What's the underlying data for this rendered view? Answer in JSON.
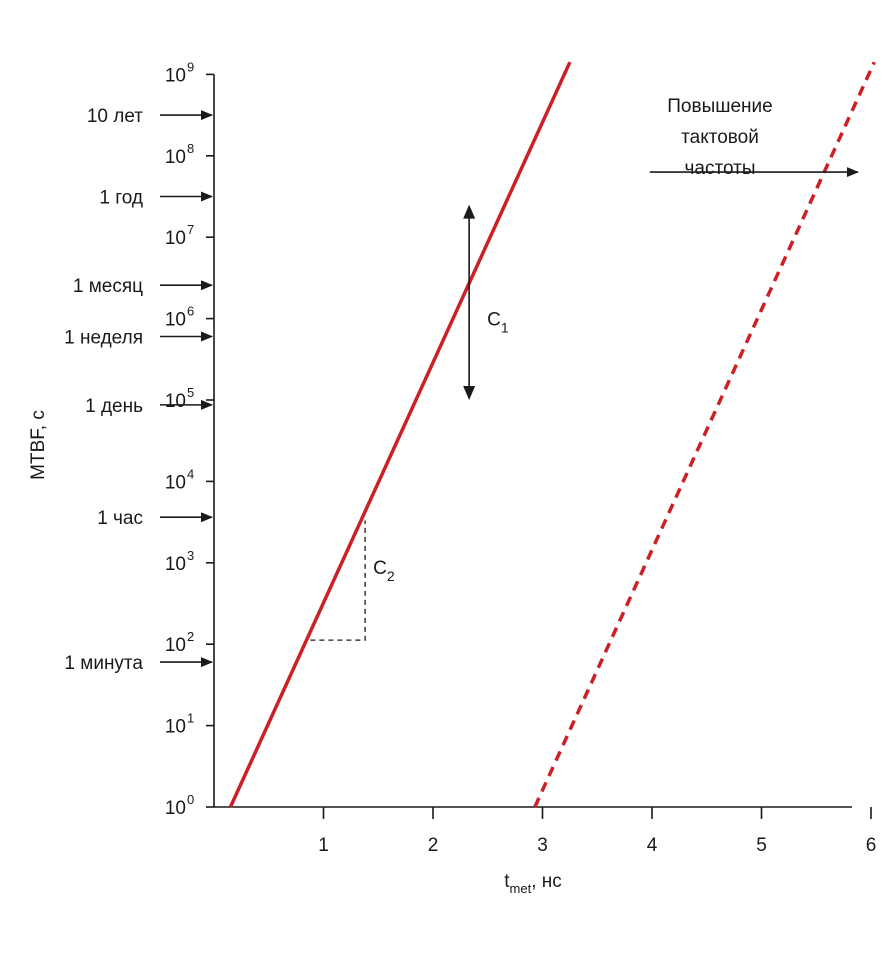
{
  "chart_data": {
    "type": "line",
    "xlabel": {
      "main": "t",
      "sub": "met",
      "rest": ", нс"
    },
    "ylabel": "MTBF, с",
    "xlim": [
      0,
      6.2
    ],
    "ylim": [
      0,
      9
    ],
    "y_scale": "log10",
    "x_ticks": [
      1,
      2,
      3,
      4,
      5,
      6
    ],
    "x_tick_labels": [
      "1",
      "2",
      "3",
      "4",
      "5",
      "6"
    ],
    "y_ticks": [
      0,
      1,
      2,
      3,
      4,
      5,
      6,
      7,
      8,
      9
    ],
    "y_tick_base": "10",
    "y_tick_exponents": [
      "0",
      "1",
      "2",
      "3",
      "4",
      "5",
      "6",
      "7",
      "8",
      "9"
    ],
    "time_markers": [
      {
        "label": "10 лет",
        "log_value": 8.5
      },
      {
        "label": "1 год",
        "log_value": 7.5
      },
      {
        "label": "1 месяц",
        "log_value": 6.41
      },
      {
        "label": "1 неделя",
        "log_value": 5.78
      },
      {
        "label": "1 день",
        "log_value": 4.94
      },
      {
        "label": "1 час",
        "log_value": 3.56
      },
      {
        "label": "1 минута",
        "log_value": 1.78
      }
    ],
    "series": [
      {
        "style": "solid",
        "color": "#cc2027",
        "x": [
          0.15,
          3.25
        ],
        "log_y": [
          0.0,
          9.15
        ]
      },
      {
        "style": "dashed",
        "color": "#cc2027",
        "x": [
          2.93,
          6.03
        ],
        "log_y": [
          0.0,
          9.15
        ]
      }
    ],
    "annotations": {
      "c1": {
        "label": "C",
        "sub": "1",
        "x": 2.33,
        "log_y_from": 5.0,
        "log_y_to": 7.4
      },
      "c2": {
        "label": "C",
        "sub": "2",
        "x0": 0.88,
        "x1": 1.38,
        "log_y0": 2.05,
        "log_y1": 3.52
      },
      "clock": {
        "lines": [
          "Повышение",
          "тактовой",
          "частоты"
        ],
        "x_from": 3.98,
        "x_to": 5.88,
        "log_y": 7.8
      }
    }
  }
}
